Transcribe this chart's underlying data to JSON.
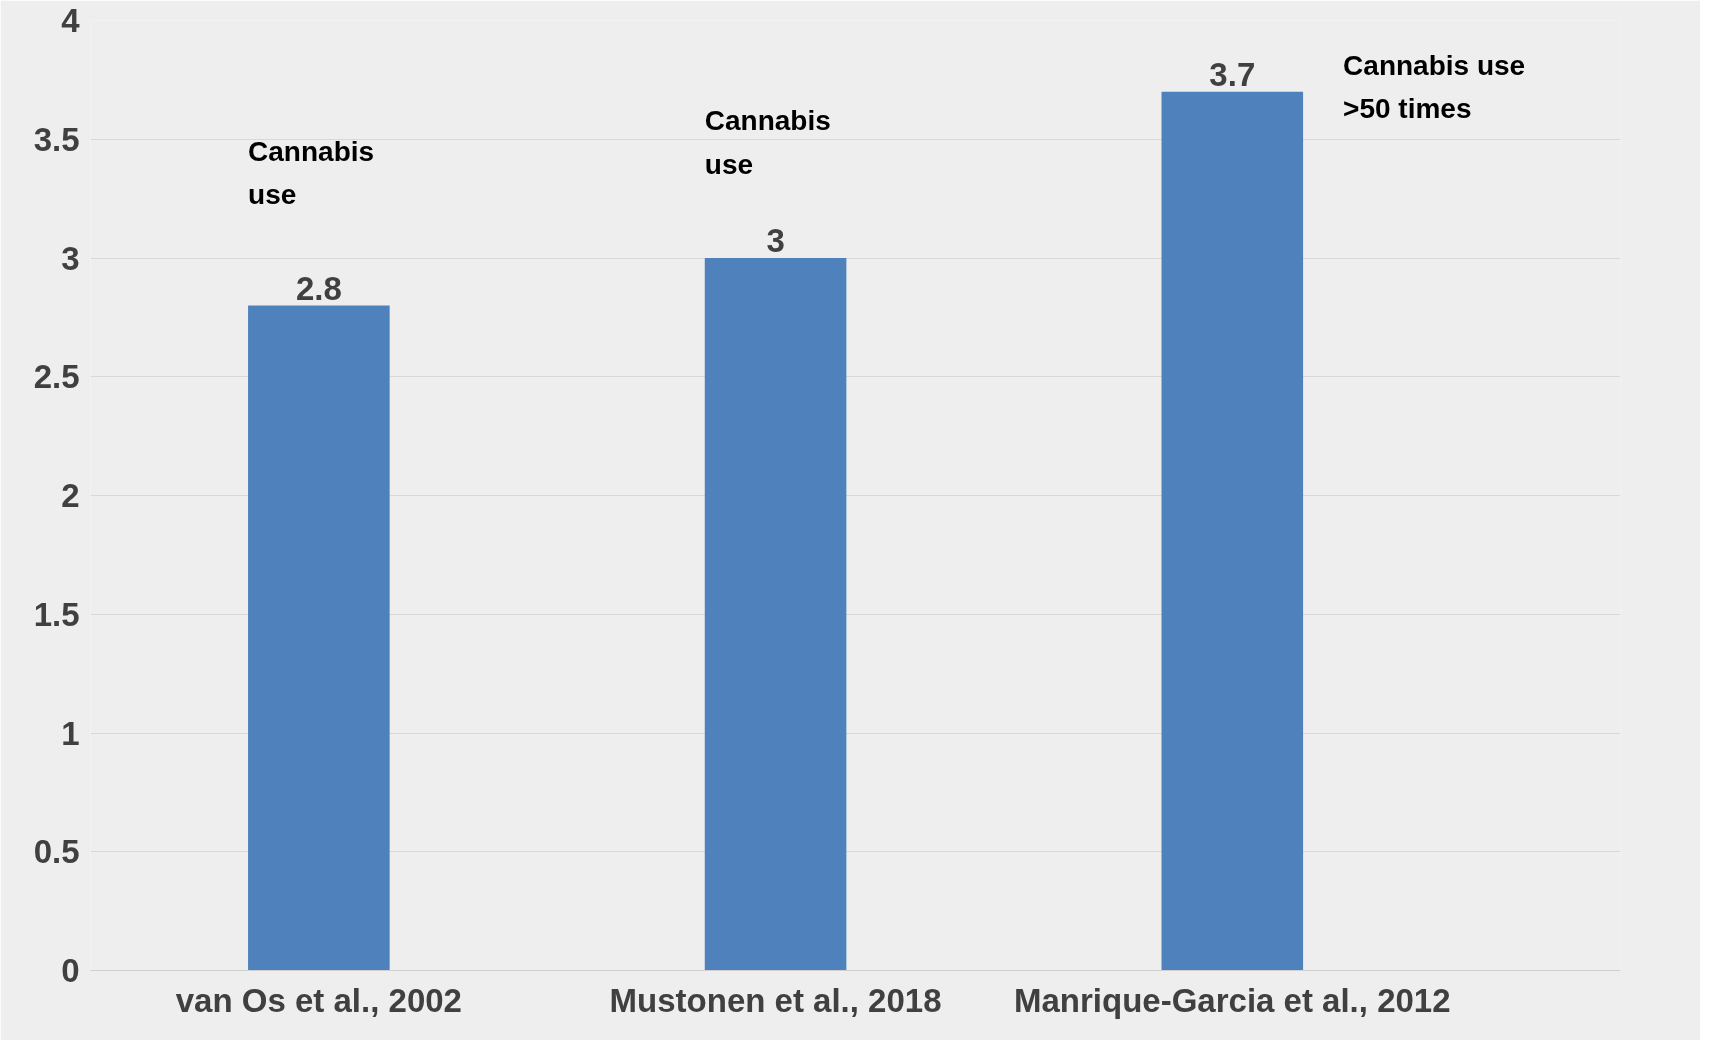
{
  "chart_data": {
    "type": "bar",
    "categories": [
      "van Os et al., 2002",
      "Mustonen et al., 2018",
      "Manrique-Garcia et al., 2012"
    ],
    "values": [
      2.8,
      3,
      3.7
    ],
    "color": "#4f81bd",
    "data_labels": true,
    "ylim": [
      0,
      4
    ],
    "yticks": [
      0,
      0.5,
      1,
      1.5,
      2,
      2.5,
      3,
      3.5,
      4
    ],
    "grid": "y",
    "annotations": [
      "Cannabis\nuse",
      "Cannabis\nuse",
      "Cannabis use\n>50 times"
    ]
  }
}
